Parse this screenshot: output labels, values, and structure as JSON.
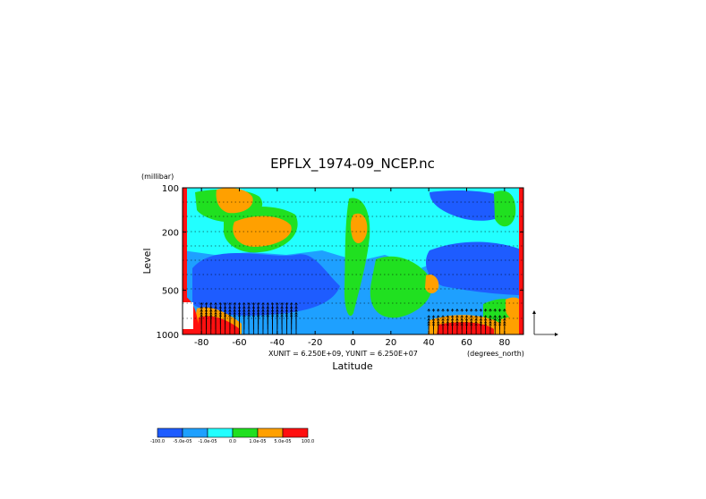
{
  "chart_data": {
    "type": "heatmap",
    "title": "EPFLX_1974-09_NCEP.nc",
    "xlabel": "Latitude",
    "ylabel": "Level",
    "x_unit_label": "(degrees_north)",
    "y_unit_label": "(millibar)",
    "vector_scale_text": "XUNIT = 6.250E+09, YUNIT = 6.250E+07",
    "xlim": [
      -90,
      90
    ],
    "ylim": [
      1000,
      100
    ],
    "y_scale": "log",
    "x_ticks": [
      "-80",
      "-60",
      "-40",
      "-20",
      "0",
      "20",
      "40",
      "60",
      "80"
    ],
    "x_tick_values": [
      -80,
      -60,
      -40,
      -20,
      0,
      20,
      40,
      60,
      80
    ],
    "y_ticks": [
      "100",
      "200",
      "500",
      "1000"
    ],
    "y_tick_values": [
      100,
      200,
      500,
      1000
    ],
    "gridlines": "dotted horizontal at pressure levels",
    "colorbar": {
      "orientation": "horizontal",
      "placement": "bottom-left",
      "colors": [
        "#1e5cff",
        "#1ea0ff",
        "#22ffff",
        "#20e020",
        "#ffa000",
        "#ff1010"
      ],
      "tick_labels": [
        "-100.0",
        "-5.0e-05",
        "-1.0e-05",
        "0.0",
        "1.0e-05",
        "5.0e-05",
        "100.0"
      ]
    },
    "features": [
      {
        "region": "upper troposphere, -65 to -45",
        "class": "orange"
      },
      {
        "region": "near 0 latitude, 200 mb",
        "class": "orange"
      },
      {
        "region": "mid levels, 40-50 N",
        "class": "orange"
      },
      {
        "region": "surface, -85 to -55",
        "class": "red"
      },
      {
        "region": "surface, 40-80 N",
        "class": "red"
      },
      {
        "region": "boundaries at -90 and 90",
        "class": "red"
      }
    ],
    "vectors": "upward arrows concentrated near surface between -80 and -30 and between 40 and 80"
  }
}
